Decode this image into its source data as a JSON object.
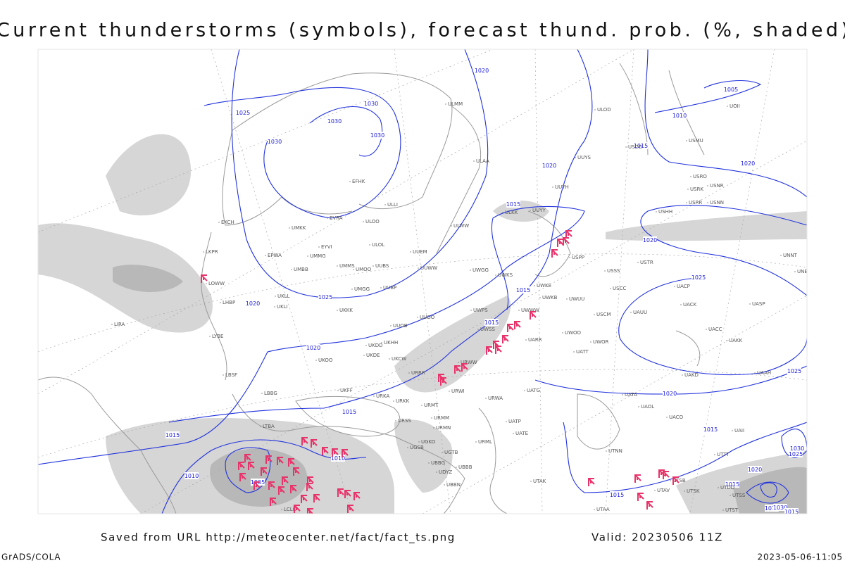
{
  "title": "Current thunderstorms (symbols), forecast thund. prob. (%, shaded)",
  "isobar_labels": [
    1020,
    1025,
    1030,
    1030,
    1030,
    1030,
    1010,
    1005,
    1015,
    1020,
    1020,
    1015,
    1020,
    1025,
    1025,
    1020,
    1015,
    1015,
    1020,
    1015,
    1025,
    1020,
    1015,
    1015,
    1010,
    1010,
    1005,
    1015,
    1020,
    1030,
    1025,
    1015,
    1010,
    1030,
    1015
  ],
  "stations": [
    "ULOD",
    "UOII",
    "ULMM",
    "USMU",
    "USDD",
    "UUYS",
    "ULAA",
    "USRO",
    "UUYH",
    "USRK",
    "USNR",
    "USRR",
    "USNN",
    "EFHK",
    "ULLI",
    "ULKK",
    "UUYY",
    "USHH",
    "EVRA",
    "ULOO",
    "EKCH",
    "UMKK",
    "ULWW",
    "EYVI",
    "ULOL",
    "UUEM",
    "LKPR",
    "EPWA",
    "UMMG",
    "USPP",
    "USTR",
    "UNNT",
    "LOWW",
    "UMBB",
    "UMMS",
    "UMOO",
    "UUBS",
    "UUWW",
    "UWGG",
    "UWKS",
    "USSS",
    "UNBB",
    "UKLL",
    "UMGG",
    "UUBP",
    "UWKE",
    "USCC",
    "UACP",
    "UWKB",
    "UWUU",
    "LHBP",
    "UKLI",
    "UKKK",
    "UACK",
    "UASP",
    "UWPS",
    "UWWW",
    "UUOO",
    "USCM",
    "UAUU",
    "LIRA",
    "UUOB",
    "UWSS",
    "UWOO",
    "UACC",
    "LYBE",
    "UKHH",
    "UKDD",
    "UARR",
    "UWOR",
    "UAKK",
    "UKDE",
    "UATT",
    "UKOO",
    "UKCW",
    "URWW",
    "LBSF",
    "URRR",
    "UAKD",
    "UAAH",
    "UKFF",
    "URWI",
    "UATG",
    "LBBG",
    "URKA",
    "URKK",
    "URWA",
    "UATA",
    "URMT",
    "UAOL",
    "URMM",
    "UACO",
    "URSS",
    "LTBA",
    "URMN",
    "UATP",
    "UAII",
    "UATE",
    "UGKO",
    "UGSB",
    "URML",
    "UTNN",
    "UGTB",
    "UTTT",
    "UBBG",
    "UBBB",
    "UDYZ",
    "UBBN",
    "UTAK",
    "UTSB",
    "UTAV",
    "UTSK",
    "UTDD",
    "UTSS",
    "UTAA",
    "UTST",
    "LCLK"
  ],
  "footer": {
    "source": "Saved from URL http://meteocenter.net/fact/fact_ts.png",
    "valid": "Valid: 20230506 11Z",
    "software": "GrADS/COLA",
    "timestamp": "2023-05-06-11:05"
  }
}
